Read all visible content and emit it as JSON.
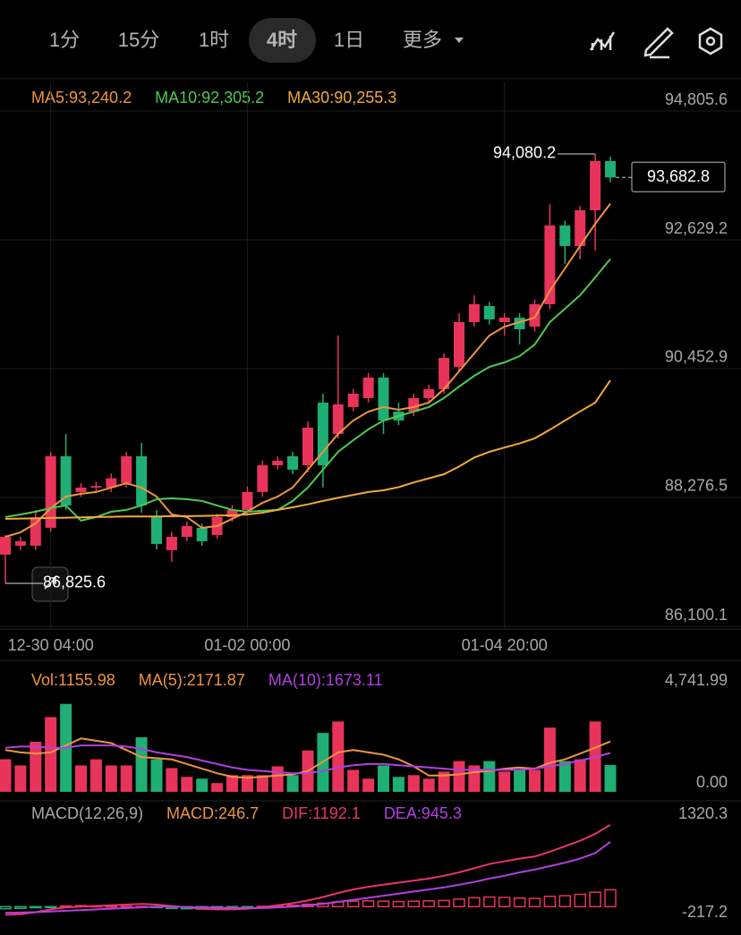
{
  "toolbar": {
    "tabs": [
      "1分",
      "15分",
      "1时",
      "4时",
      "1日",
      "更多"
    ],
    "active_tab": 3
  },
  "chart_data": [
    {
      "type": "candlestick",
      "categories": [
        null,
        null,
        null,
        "12-30 04:00",
        null,
        null,
        null,
        null,
        null,
        null,
        null,
        null,
        null,
        null,
        null,
        null,
        "01-02 00:00",
        null,
        null,
        null,
        null,
        null,
        null,
        null,
        null,
        null,
        null,
        null,
        null,
        null,
        null,
        null,
        null,
        "01-04 20:00",
        null,
        null,
        null,
        null,
        null,
        null,
        null
      ],
      "open": [
        87311,
        87462,
        87462,
        87764,
        88973,
        88368,
        88444,
        88444,
        88520,
        88973,
        87945,
        87386,
        87612,
        87764,
        87643,
        87945,
        88066,
        88368,
        88821,
        88973,
        88821,
        89879,
        89350,
        89804,
        89955,
        90302,
        89728,
        89728,
        89955,
        90106,
        90483,
        91239,
        91511,
        91239,
        91314,
        91163,
        91541,
        92871,
        92523,
        93128,
        93959
      ],
      "high": [
        87643,
        87612,
        88066,
        89050,
        89350,
        88520,
        88540,
        88680,
        89050,
        89200,
        88066,
        87700,
        87870,
        87840,
        88000,
        88150,
        88460,
        88900,
        88970,
        89050,
        89560,
        90030,
        91010,
        90110,
        90380,
        90380,
        89880,
        90030,
        90180,
        90710,
        91390,
        91690,
        91580,
        91390,
        91390,
        91620,
        93230,
        92950,
        93200,
        94080.2,
        94035
      ],
      "low": [
        86825.6,
        87386,
        87386,
        87700,
        88066,
        88290,
        88380,
        88368,
        88444,
        88020,
        87400,
        87190,
        87540,
        87460,
        87580,
        87870,
        87990,
        88290,
        88750,
        88670,
        88700,
        88444,
        89270,
        89730,
        89880,
        89350,
        89500,
        89650,
        89880,
        90030,
        90400,
        91160,
        91200,
        91010,
        90860,
        91080,
        91460,
        92220,
        92300,
        92450,
        93600
      ],
      "close": [
        87612,
        87537,
        87915,
        88973,
        88142,
        88444,
        88470,
        88600,
        88973,
        88142,
        87492,
        87612,
        87794,
        87537,
        87945,
        88066,
        88368,
        88821,
        88897,
        88746,
        89456,
        88821,
        89849,
        90030,
        90302,
        89577,
        89577,
        89955,
        90106,
        90634,
        91239,
        91541,
        91284,
        91314,
        91118,
        91541,
        92871,
        92523,
        93128,
        93959,
        93682.8
      ],
      "up_color": "#e8345a",
      "down_color": "#1fae74",
      "series": [
        {
          "name": "MA5",
          "label": "MA5:93,240.2",
          "color": "#ef9440",
          "values": [
            87612,
            87688,
            87839,
            88096,
            88292,
            88338,
            88368,
            88444,
            88519,
            88444,
            88292,
            87990,
            87945,
            87764,
            87794,
            87915,
            88036,
            88187,
            88292,
            88444,
            88746,
            89048,
            89350,
            89577,
            89728,
            89804,
            89758,
            89804,
            89879,
            90106,
            90408,
            90710,
            91012,
            91163,
            91239,
            91314,
            91768,
            92146,
            92523,
            92901,
            93240.2
          ]
        },
        {
          "name": "MA10",
          "label": "MA10:92,305.2",
          "color": "#4fc94f",
          "values": [
            87945,
            87990,
            88036,
            88096,
            88142,
            87885,
            87945,
            88036,
            88066,
            88142,
            88247,
            88262,
            88247,
            88217,
            88142,
            88066,
            88036,
            88051,
            88066,
            88217,
            88444,
            88746,
            89048,
            89244,
            89426,
            89577,
            89652,
            89728,
            89804,
            89955,
            90151,
            90332,
            90483,
            90559,
            90665,
            90861,
            91239,
            91466,
            91692,
            91994,
            92305.2
          ]
        },
        {
          "name": "MA30",
          "label": "MA30:90,255.3",
          "color": "#f2aa3a",
          "values": [
            87915,
            87920,
            87925,
            87930,
            87935,
            87940,
            87945,
            87950,
            87955,
            87955,
            87955,
            87960,
            87960,
            87965,
            87970,
            87975,
            87990,
            88020,
            88066,
            88110,
            88160,
            88217,
            88270,
            88320,
            88368,
            88398,
            88450,
            88530,
            88600,
            88670,
            88800,
            88950,
            89048,
            89120,
            89190,
            89275,
            89420,
            89577,
            89730,
            89879,
            90255.3
          ]
        }
      ],
      "high_label": "94,080.2",
      "low_label": "86,825.6",
      "last_label": "93,682.8",
      "ylim": [
        86100.1,
        94805.6
      ],
      "yticks": [
        {
          "value": 94805.6,
          "label": "94,805.6"
        },
        {
          "value": 92629.2,
          "label": "92,629.2"
        },
        {
          "value": 90452.9,
          "label": "90,452.9"
        },
        {
          "value": 88276.5,
          "label": "88,276.5"
        },
        {
          "value": 86100.1,
          "label": "86,100.1"
        }
      ],
      "grid": true
    },
    {
      "type": "bar",
      "label": "Vol:1155.98",
      "values": [
        1402,
        1137,
        2160,
        3222,
        3790,
        1137,
        1402,
        1137,
        1137,
        2350,
        1402,
        1023,
        644,
        568,
        379,
        720,
        720,
        720,
        1099,
        720,
        1781,
        2539,
        3032,
        947,
        568,
        1137,
        644,
        720,
        568,
        872,
        1326,
        1137,
        1326,
        872,
        947,
        947,
        2767,
        1326,
        1402,
        3032,
        1155.98
      ],
      "series": [
        {
          "name": "MA(5)",
          "label": "MA(5):2171.87",
          "color": "#ef9440",
          "values": [
            1800,
            1700,
            1650,
            1700,
            2000,
            2300,
            2200,
            2100,
            1800,
            1500,
            1450,
            1400,
            1200,
            1000,
            800,
            650,
            600,
            650,
            700,
            750,
            900,
            1300,
            1700,
            1800,
            1700,
            1600,
            1400,
            1100,
            700,
            700,
            750,
            850,
            900,
            1000,
            1050,
            1000,
            1250,
            1400,
            1650,
            1900,
            2171.87
          ]
        },
        {
          "name": "MA(10)",
          "label": "MA(10):1673.11",
          "color": "#b23fe0",
          "values": [
            1900,
            1950,
            1950,
            1900,
            1900,
            2000,
            2000,
            2000,
            1950,
            1850,
            1700,
            1600,
            1500,
            1350,
            1200,
            1050,
            950,
            900,
            850,
            800,
            800,
            900,
            1050,
            1150,
            1200,
            1200,
            1150,
            1100,
            1050,
            1000,
            950,
            950,
            950,
            950,
            950,
            1000,
            1100,
            1200,
            1350,
            1500,
            1673.11
          ]
        }
      ],
      "ylim": [
        0,
        4741.99
      ],
      "yticks": [
        {
          "value": 4741.99,
          "label": "4,741.99"
        },
        {
          "value": 0,
          "label": "0.00"
        }
      ]
    },
    {
      "type": "macd",
      "title": "MACD(12,26,9)",
      "label": "MACD:246.7",
      "color": "#ef9440",
      "values": [
        -30,
        -25,
        -15,
        -5,
        10,
        15,
        10,
        8,
        5,
        3,
        -10,
        -25,
        -30,
        -35,
        -30,
        -25,
        -10,
        5,
        15,
        20,
        35,
        50,
        70,
        80,
        85,
        80,
        75,
        80,
        85,
        90,
        110,
        130,
        140,
        135,
        125,
        120,
        150,
        160,
        180,
        210,
        246.7
      ],
      "series": [
        {
          "name": "DIF",
          "label": "DIF:1192.1",
          "color": "#e8346e",
          "values": [
            -120,
            -110,
            -80,
            -40,
            -10,
            0,
            10,
            20,
            30,
            40,
            30,
            10,
            -10,
            -30,
            -40,
            -40,
            -30,
            -10,
            20,
            50,
            90,
            140,
            200,
            250,
            290,
            320,
            350,
            380,
            410,
            450,
            500,
            560,
            620,
            660,
            700,
            730,
            800,
            880,
            960,
            1060,
            1192.1
          ]
        },
        {
          "name": "DEA",
          "label": "DEA:945.3",
          "color": "#b23fe0",
          "values": [
            -90,
            -85,
            -80,
            -70,
            -60,
            -50,
            -40,
            -30,
            -20,
            -10,
            0,
            0,
            -5,
            -10,
            -15,
            -20,
            -20,
            -20,
            -10,
            0,
            20,
            40,
            70,
            100,
            130,
            160,
            190,
            220,
            250,
            280,
            320,
            360,
            410,
            450,
            500,
            540,
            590,
            640,
            700,
            780,
            945.3
          ]
        }
      ],
      "ylim": [
        -217.2,
        1320.3
      ],
      "yticks": [
        1320.3,
        -217.2
      ]
    }
  ]
}
